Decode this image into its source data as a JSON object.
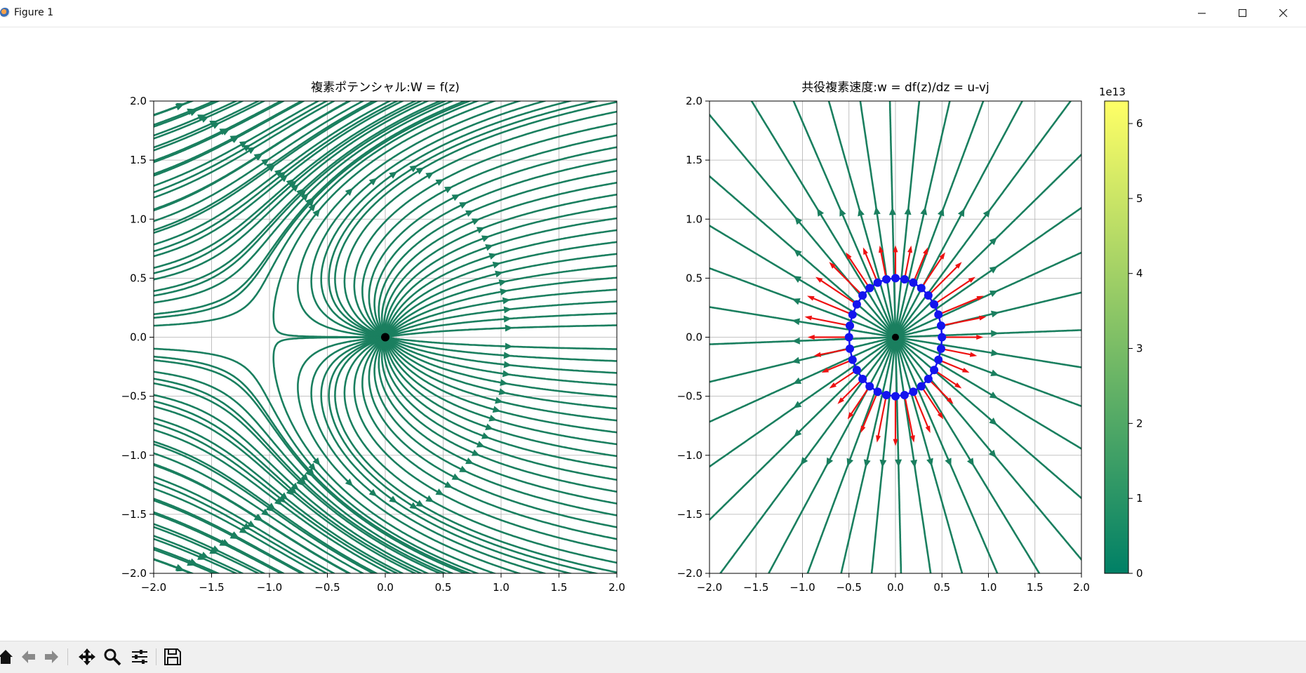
{
  "window": {
    "title": "Figure 1",
    "minimize_icon": "minimize-icon",
    "maximize_icon": "maximize-icon",
    "close_icon": "close-icon"
  },
  "toolbar": {
    "icons": [
      "home-icon",
      "back-icon",
      "forward-icon",
      "pan-icon",
      "zoom-icon",
      "configure-subplots-icon",
      "save-icon"
    ]
  },
  "colors": {
    "stream": "#1a7f5f",
    "arrow_red": "#ee1111",
    "ring_blue": "#1414ee",
    "point_black": "#000000",
    "grid": "#b0b0b0"
  },
  "chart_data": [
    {
      "type": "streamplot",
      "title": "複素ポテンシャル:W = f(z)",
      "xlim": [
        -2.0,
        2.0
      ],
      "ylim": [
        -2.0,
        2.0
      ],
      "xticks": [
        "−2.0",
        "−1.5",
        "−1.0",
        "−0.5",
        "0.0",
        "0.5",
        "1.0",
        "1.5",
        "2.0"
      ],
      "yticks": [
        "−2.0",
        "−1.5",
        "−1.0",
        "−0.5",
        "0.0",
        "0.5",
        "1.0",
        "1.5",
        "2.0"
      ],
      "grid": true,
      "marked_point": {
        "x": 0.0,
        "y": 0.0
      }
    },
    {
      "type": "streamplot",
      "title": "共役複素速度:w = df(z)/dz = u-vj",
      "xlim": [
        -2.0,
        2.0
      ],
      "ylim": [
        -2.0,
        2.0
      ],
      "xticks": [
        "−2.0",
        "−1.5",
        "−1.0",
        "−0.5",
        "0.0",
        "0.5",
        "1.0",
        "1.5",
        "2.0"
      ],
      "yticks": [
        "−2.0",
        "−1.5",
        "−1.0",
        "−0.5",
        "0.0",
        "0.5",
        "1.0",
        "1.5",
        "2.0"
      ],
      "grid": true,
      "marked_point": {
        "x": 0.0,
        "y": 0.0
      },
      "circle": {
        "center": [
          0.0,
          0.0
        ],
        "radius": 0.5,
        "n_points": 32
      },
      "colorbar": {
        "range": [
          0,
          6.3
        ],
        "ticks": [
          "0",
          "1",
          "2",
          "3",
          "4",
          "5",
          "6"
        ],
        "multiplier": "1e13",
        "colormap": "summer"
      }
    }
  ]
}
